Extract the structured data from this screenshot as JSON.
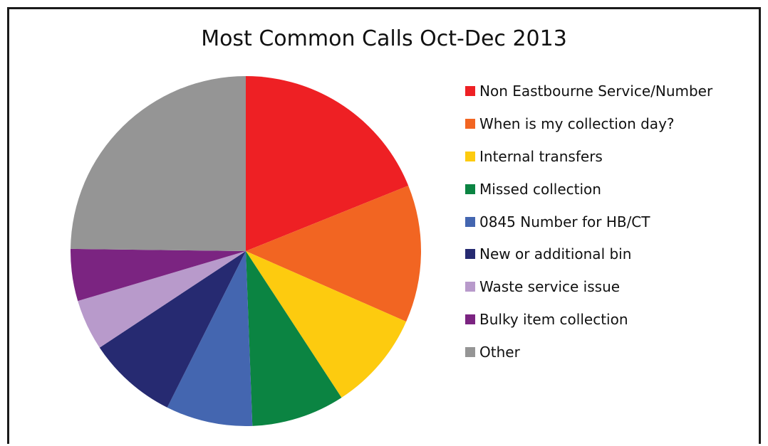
{
  "chart_data": {
    "type": "pie",
    "title": "Most Common Calls Oct-Dec 2013",
    "legend_position": "right",
    "start_angle_deg": 0,
    "direction": "clockwise",
    "slices": [
      {
        "label": "Non Eastbourne Service/Number",
        "value": 18.9,
        "color": "#ee2024"
      },
      {
        "label": "When is my collection day?",
        "value": 12.7,
        "color": "#f26522"
      },
      {
        "label": "Internal transfers",
        "value": 9.2,
        "color": "#fdcb0f"
      },
      {
        "label": "Missed collection",
        "value": 8.6,
        "color": "#0b8442"
      },
      {
        "label": "0845 Number for HB/CT",
        "value": 8.0,
        "color": "#4466b0"
      },
      {
        "label": "New or additional bin",
        "value": 8.3,
        "color": "#262a71"
      },
      {
        "label": "Waste service issue",
        "value": 4.7,
        "color": "#b89acb"
      },
      {
        "label": "Bulky item collection",
        "value": 4.8,
        "color": "#7b2481"
      },
      {
        "label": "Other",
        "value": 24.8,
        "color": "#959595"
      }
    ]
  }
}
